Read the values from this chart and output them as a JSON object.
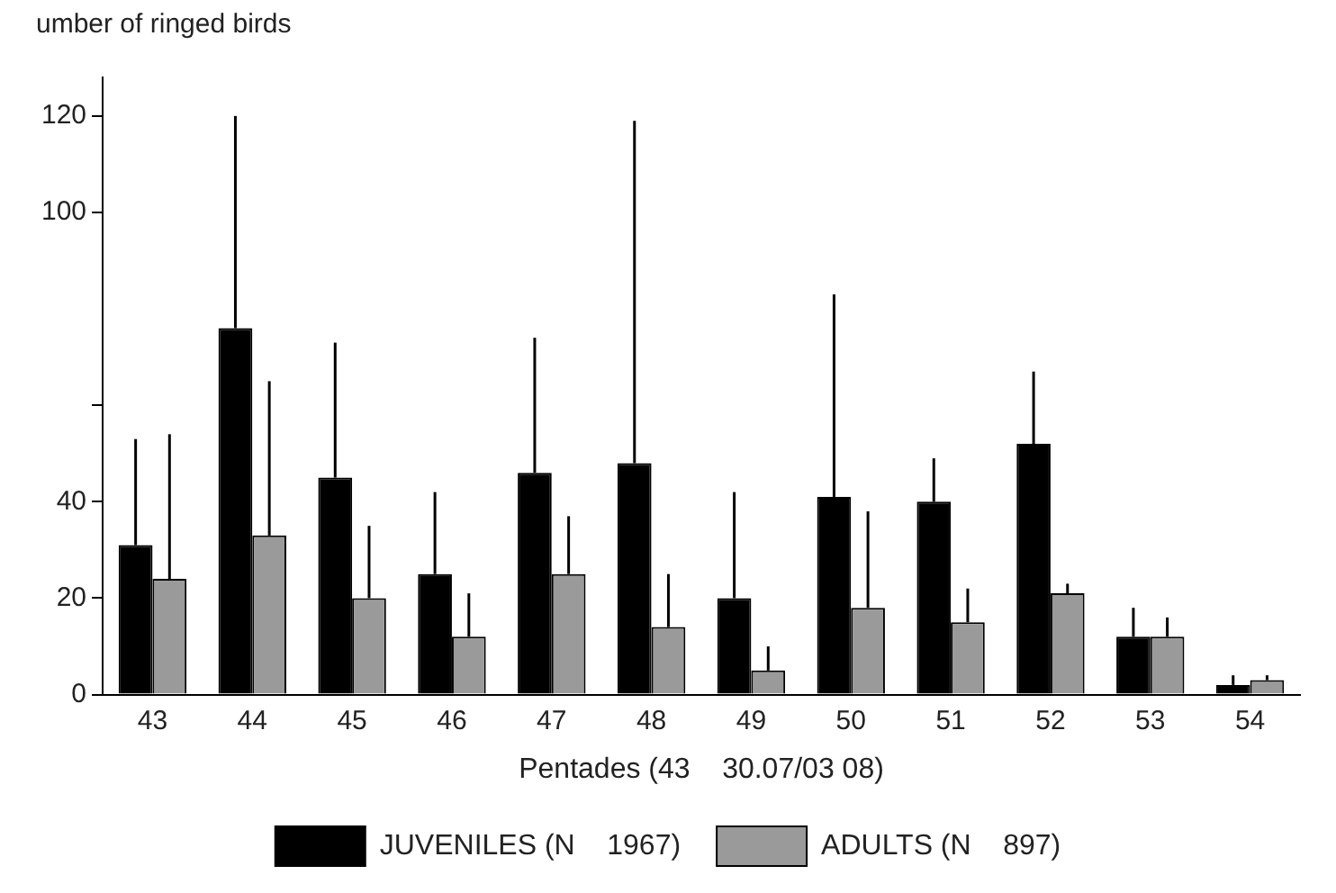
{
  "chart_data": {
    "type": "bar",
    "title": "umber of ringed birds",
    "xlabel": "Pentades (43    30.07/03 08)",
    "categories": [
      "43",
      "44",
      "45",
      "46",
      "47",
      "48",
      "49",
      "50",
      "51",
      "52",
      "53",
      "54"
    ],
    "series": [
      {
        "name": "JUVENILES (N    1967)",
        "color": "#000000",
        "values": [
          31,
          76,
          45,
          25,
          46,
          48,
          20,
          41,
          40,
          52,
          12,
          2
        ],
        "errors": [
          [
            31,
            53
          ],
          [
            76,
            120
          ],
          [
            45,
            73
          ],
          [
            25,
            42
          ],
          [
            46,
            74
          ],
          [
            48,
            119
          ],
          [
            20,
            42
          ],
          [
            41,
            83
          ],
          [
            40,
            49
          ],
          [
            52,
            67
          ],
          [
            12,
            18
          ],
          [
            2,
            4
          ]
        ]
      },
      {
        "name": "ADULTS (N    897)",
        "color": "#9a9a9a",
        "values": [
          24,
          33,
          20,
          12,
          25,
          14,
          5,
          18,
          15,
          21,
          12,
          3
        ],
        "errors": [
          [
            24,
            54
          ],
          [
            33,
            65
          ],
          [
            20,
            35
          ],
          [
            12,
            21
          ],
          [
            25,
            37
          ],
          [
            14,
            25
          ],
          [
            5,
            10
          ],
          [
            18,
            38
          ],
          [
            15,
            22
          ],
          [
            21,
            23
          ],
          [
            12,
            16
          ],
          [
            3,
            4
          ]
        ]
      }
    ],
    "ylim": [
      0,
      128
    ],
    "yticks": [
      0,
      20,
      40,
      {
        "value": 60,
        "label": null
      },
      100,
      120
    ],
    "grid": false,
    "legend": "bottom"
  }
}
